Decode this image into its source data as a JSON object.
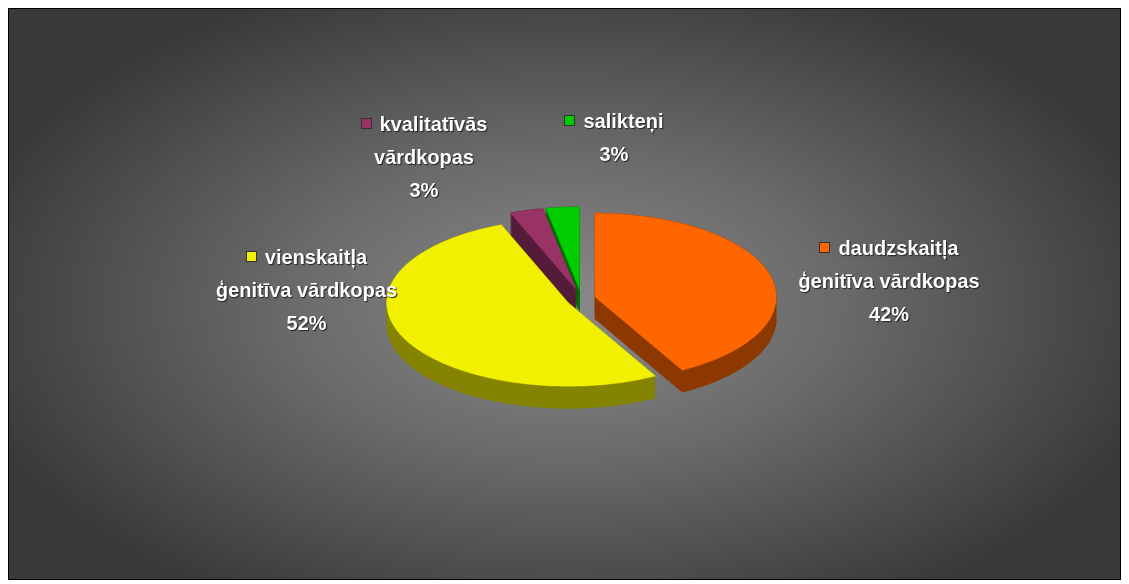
{
  "chart_data": {
    "type": "pie",
    "categories": [
      "daudzskaitļa ģenitīva vārdkopas",
      "vienskaitļa ģenitīva vārdkopas",
      "kvalitatīvās vārdkopas",
      "salikteņi"
    ],
    "values": [
      42,
      52,
      3,
      3
    ],
    "value_labels": [
      "42%",
      "52%",
      "3%",
      "3%"
    ],
    "colors": [
      "#ff6600",
      "#f0f000",
      "#993366",
      "#00cc00"
    ]
  }
}
